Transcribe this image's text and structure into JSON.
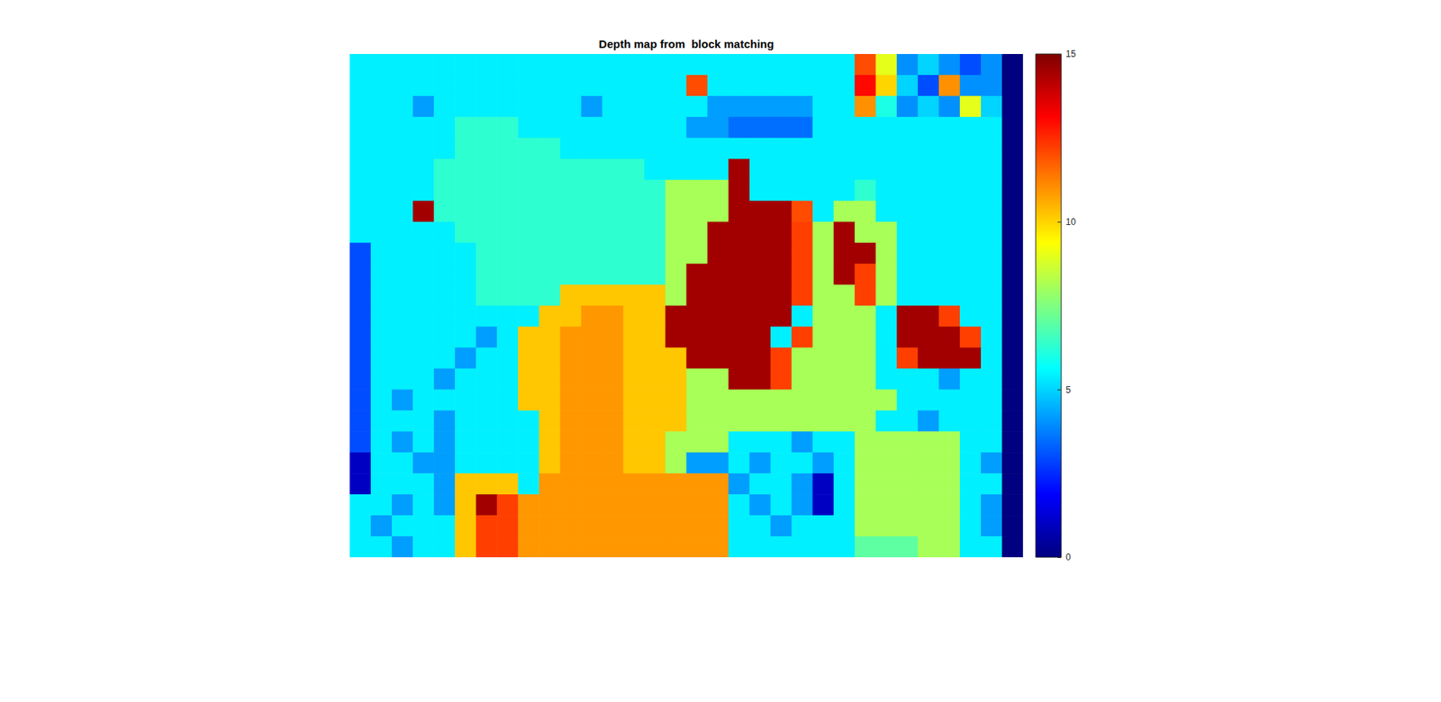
{
  "chart_data": {
    "type": "heatmap",
    "title": "Depth map from  block matching",
    "tick_labels": false,
    "colorbar_lim": [
      0,
      15
    ],
    "colorbar_ticks": [
      0,
      5,
      10,
      15
    ],
    "cells": [
      [
        5.4,
        5.4,
        5.4,
        5.4,
        5.4,
        5.4,
        5.4,
        5.4,
        5.4,
        5.4,
        5.4,
        5.4,
        5.4,
        5.4,
        5.4,
        5.4,
        5.4,
        5.4,
        5.4,
        5.4,
        5.4,
        5.4,
        5.4,
        5.4,
        12,
        9,
        4,
        5,
        4,
        3,
        4,
        0
      ],
      [
        5.4,
        5.4,
        5.4,
        5.4,
        5.4,
        5.4,
        5.4,
        5.4,
        5.4,
        5.4,
        5.4,
        5.4,
        5.4,
        5.4,
        5.4,
        5.4,
        12,
        5.4,
        5.4,
        5.4,
        5.4,
        5.4,
        5.4,
        5.4,
        13,
        10,
        5,
        3,
        11,
        4,
        4,
        0
      ],
      [
        5.4,
        5.4,
        5.4,
        4.2,
        5.4,
        5.4,
        5.4,
        5.4,
        5.4,
        5.4,
        5.4,
        4.2,
        5.4,
        5.4,
        5.4,
        5.4,
        5.4,
        4.2,
        4.2,
        4.2,
        4.2,
        4.2,
        5.4,
        5.4,
        11,
        6,
        4,
        5,
        4,
        9,
        5,
        0
      ],
      [
        5.4,
        5.4,
        5.4,
        5.4,
        5.4,
        6.3,
        6.3,
        6.3,
        5.4,
        5.4,
        5.4,
        5.4,
        5.4,
        5.4,
        5.4,
        5.4,
        4.2,
        4.2,
        3.5,
        3.5,
        3.5,
        3.5,
        5.4,
        5.4,
        5.4,
        5.4,
        5.4,
        5.4,
        5.4,
        5.4,
        5.4,
        0
      ],
      [
        5.4,
        5.4,
        5.4,
        5.4,
        5.4,
        6.3,
        6.3,
        6.3,
        6.3,
        6.3,
        5.4,
        5.4,
        5.4,
        5.4,
        5.4,
        5.4,
        5.4,
        5.4,
        5.4,
        5.4,
        5.4,
        5.4,
        5.4,
        5.4,
        5.4,
        5.4,
        5.4,
        5.4,
        5.4,
        5.4,
        5.4,
        0
      ],
      [
        5.4,
        5.4,
        5.4,
        5.4,
        6.3,
        6.3,
        6.3,
        6.3,
        6.3,
        6.3,
        6.3,
        6.3,
        6.3,
        6.3,
        5.4,
        5.4,
        5.4,
        5.4,
        14.5,
        5.4,
        5.4,
        5.4,
        5.4,
        5.4,
        5.4,
        5.4,
        5.4,
        5.4,
        5.4,
        5.4,
        5.4,
        0
      ],
      [
        5.4,
        5.4,
        5.4,
        5.4,
        6.3,
        6.3,
        6.3,
        6.3,
        6.3,
        6.3,
        6.3,
        6.3,
        6.3,
        6.3,
        6.3,
        8.1,
        8.1,
        8.1,
        14.5,
        5.4,
        5.4,
        5.4,
        5.4,
        5.4,
        6.3,
        5.4,
        5.4,
        5.4,
        5.4,
        5.4,
        5.4,
        0
      ],
      [
        5.4,
        5.4,
        5.4,
        14.5,
        6.3,
        6.3,
        6.3,
        6.3,
        6.3,
        6.3,
        6.3,
        6.3,
        6.3,
        6.3,
        6.3,
        8.1,
        8.1,
        8.1,
        14.5,
        14.5,
        14.5,
        12,
        5.4,
        8.1,
        8.1,
        5.4,
        5.4,
        5.4,
        5.4,
        5.4,
        5.4,
        0
      ],
      [
        5.4,
        5.4,
        5.4,
        5.4,
        5.4,
        6.3,
        6.3,
        6.3,
        6.3,
        6.3,
        6.3,
        6.3,
        6.3,
        6.3,
        6.3,
        8.1,
        8.1,
        14.5,
        14.5,
        14.5,
        14.5,
        12.2,
        8.1,
        14.5,
        8.1,
        8.1,
        5.4,
        5.4,
        5.4,
        5.4,
        5.4,
        0
      ],
      [
        3,
        5.4,
        5.4,
        5.4,
        5.4,
        5.4,
        6.3,
        6.3,
        6.3,
        6.3,
        6.3,
        6.3,
        6.3,
        6.3,
        6.3,
        8.1,
        8.1,
        14.5,
        14.5,
        14.5,
        14.5,
        12.2,
        8.1,
        14.5,
        14.5,
        8.1,
        5.4,
        5.4,
        5.4,
        5.4,
        5.4,
        0
      ],
      [
        3,
        5.4,
        5.4,
        5.4,
        5.4,
        5.4,
        6.3,
        6.3,
        6.3,
        6.3,
        6.3,
        6.3,
        6.3,
        6.3,
        6.3,
        8.1,
        14.5,
        14.5,
        14.5,
        14.5,
        14.5,
        12.2,
        8.1,
        14.5,
        12.2,
        8.1,
        5.4,
        5.4,
        5.4,
        5.4,
        5.4,
        0
      ],
      [
        3,
        5.4,
        5.4,
        5.4,
        5.4,
        5.4,
        6.3,
        6.3,
        6.3,
        6.3,
        10.2,
        10.2,
        10.2,
        10.2,
        10.2,
        8.1,
        14.5,
        14.5,
        14.5,
        14.5,
        14.5,
        12.2,
        8.1,
        8.1,
        12.2,
        8.1,
        5.4,
        5.4,
        5.4,
        5.4,
        5.4,
        0
      ],
      [
        3,
        5.4,
        5.4,
        5.4,
        5.4,
        5.4,
        5.4,
        5.4,
        5.4,
        10.2,
        10.2,
        10.9,
        10.9,
        10.2,
        10.2,
        14.5,
        14.5,
        14.5,
        14.5,
        14.5,
        14.5,
        5.4,
        8.1,
        8.1,
        8.1,
        5.4,
        14.5,
        14.5,
        12.2,
        5.4,
        5.4,
        0
      ],
      [
        3,
        5.4,
        5.4,
        5.4,
        5.4,
        5.4,
        4.2,
        5.4,
        10.2,
        10.2,
        10.9,
        10.9,
        10.9,
        10.2,
        10.2,
        14.5,
        14.5,
        14.5,
        14.5,
        14.5,
        5.4,
        12.2,
        8.1,
        8.1,
        8.1,
        5.4,
        14.5,
        14.5,
        14.5,
        12.2,
        5.4,
        0
      ],
      [
        3,
        5.4,
        5.4,
        5.4,
        5.4,
        4.2,
        5.4,
        5.4,
        10.2,
        10.2,
        10.9,
        10.9,
        10.9,
        10.2,
        10.2,
        10.2,
        14.5,
        14.5,
        14.5,
        14.5,
        12.2,
        8.1,
        8.1,
        8.1,
        8.1,
        5.4,
        12.2,
        14.5,
        14.5,
        14.5,
        5.4,
        0
      ],
      [
        3,
        5.4,
        5.4,
        5.4,
        4.2,
        5.4,
        5.4,
        5.4,
        10.2,
        10.2,
        10.9,
        10.9,
        10.9,
        10.2,
        10.2,
        10.2,
        8.1,
        8.1,
        14.5,
        14.5,
        12.2,
        8.1,
        8.1,
        8.1,
        8.1,
        5.4,
        5.4,
        5.4,
        4.2,
        5.4,
        5.4,
        0
      ],
      [
        3,
        5.4,
        4.2,
        5.4,
        5.4,
        5.4,
        5.4,
        5.4,
        10.2,
        10.2,
        10.9,
        10.9,
        10.9,
        10.2,
        10.2,
        10.2,
        8.1,
        8.1,
        8.1,
        8.1,
        8.1,
        8.1,
        8.1,
        8.1,
        8.1,
        8.1,
        5.4,
        5.4,
        5.4,
        5.4,
        5.4,
        0
      ],
      [
        3,
        5.4,
        5.4,
        5.4,
        4.2,
        5.4,
        5.4,
        5.4,
        5.4,
        10.2,
        10.9,
        10.9,
        10.9,
        10.2,
        10.2,
        10.2,
        8.1,
        8.1,
        8.1,
        8.1,
        8.1,
        8.1,
        8.1,
        8.1,
        8.1,
        5.4,
        5.4,
        4.2,
        5.4,
        5.4,
        5.4,
        0
      ],
      [
        3,
        5.4,
        4.2,
        5.4,
        4.2,
        5.4,
        5.4,
        5.4,
        5.4,
        10.2,
        10.9,
        10.9,
        10.9,
        10.2,
        10.2,
        8.1,
        8.1,
        8.1,
        5.4,
        5.4,
        5.4,
        4.2,
        5.4,
        5.4,
        8.1,
        8.1,
        8.1,
        8.1,
        8.1,
        5.4,
        5.4,
        0
      ],
      [
        1,
        5.4,
        5.4,
        4.2,
        4.2,
        5.4,
        5.4,
        5.4,
        5.4,
        10.2,
        10.9,
        10.9,
        10.9,
        10.2,
        10.2,
        8.1,
        4.2,
        4.2,
        5.4,
        4.2,
        5.4,
        5.4,
        4.2,
        5.4,
        8.1,
        8.1,
        8.1,
        8.1,
        8.1,
        5.4,
        4.2,
        0
      ],
      [
        1,
        5.4,
        5.4,
        5.4,
        4.2,
        10.2,
        10.2,
        10.2,
        5.4,
        10.9,
        10.9,
        10.9,
        10.9,
        10.9,
        10.9,
        10.9,
        10.9,
        10.9,
        4.2,
        5.4,
        5.4,
        4.2,
        1,
        5.4,
        8.1,
        8.1,
        8.1,
        8.1,
        8.1,
        5.4,
        5.4,
        0
      ],
      [
        5.4,
        5.4,
        4.2,
        5.4,
        4.2,
        10.2,
        14.5,
        12.2,
        10.9,
        10.9,
        10.9,
        10.9,
        10.9,
        10.9,
        10.9,
        10.9,
        10.9,
        10.9,
        5.4,
        4.2,
        5.4,
        4.2,
        1,
        5.4,
        8.1,
        8.1,
        8.1,
        8.1,
        8.1,
        5.4,
        4.2,
        0
      ],
      [
        5.4,
        4.2,
        5.4,
        5.4,
        5.4,
        10.2,
        12.2,
        12.2,
        10.9,
        10.9,
        10.9,
        10.9,
        10.9,
        10.9,
        10.9,
        10.9,
        10.9,
        10.9,
        5.4,
        5.4,
        4.2,
        5.4,
        5.4,
        5.4,
        8.1,
        8.1,
        8.1,
        8.1,
        8.1,
        5.4,
        4.2,
        0
      ],
      [
        5.4,
        5.4,
        4.2,
        5.4,
        5.4,
        10.2,
        12.2,
        12.2,
        10.9,
        10.9,
        10.9,
        10.9,
        10.9,
        10.9,
        10.9,
        10.9,
        10.9,
        10.9,
        5.4,
        5.4,
        5.4,
        5.4,
        5.4,
        5.4,
        7,
        7,
        7,
        8.1,
        8.1,
        5.4,
        5.4,
        0
      ]
    ]
  }
}
